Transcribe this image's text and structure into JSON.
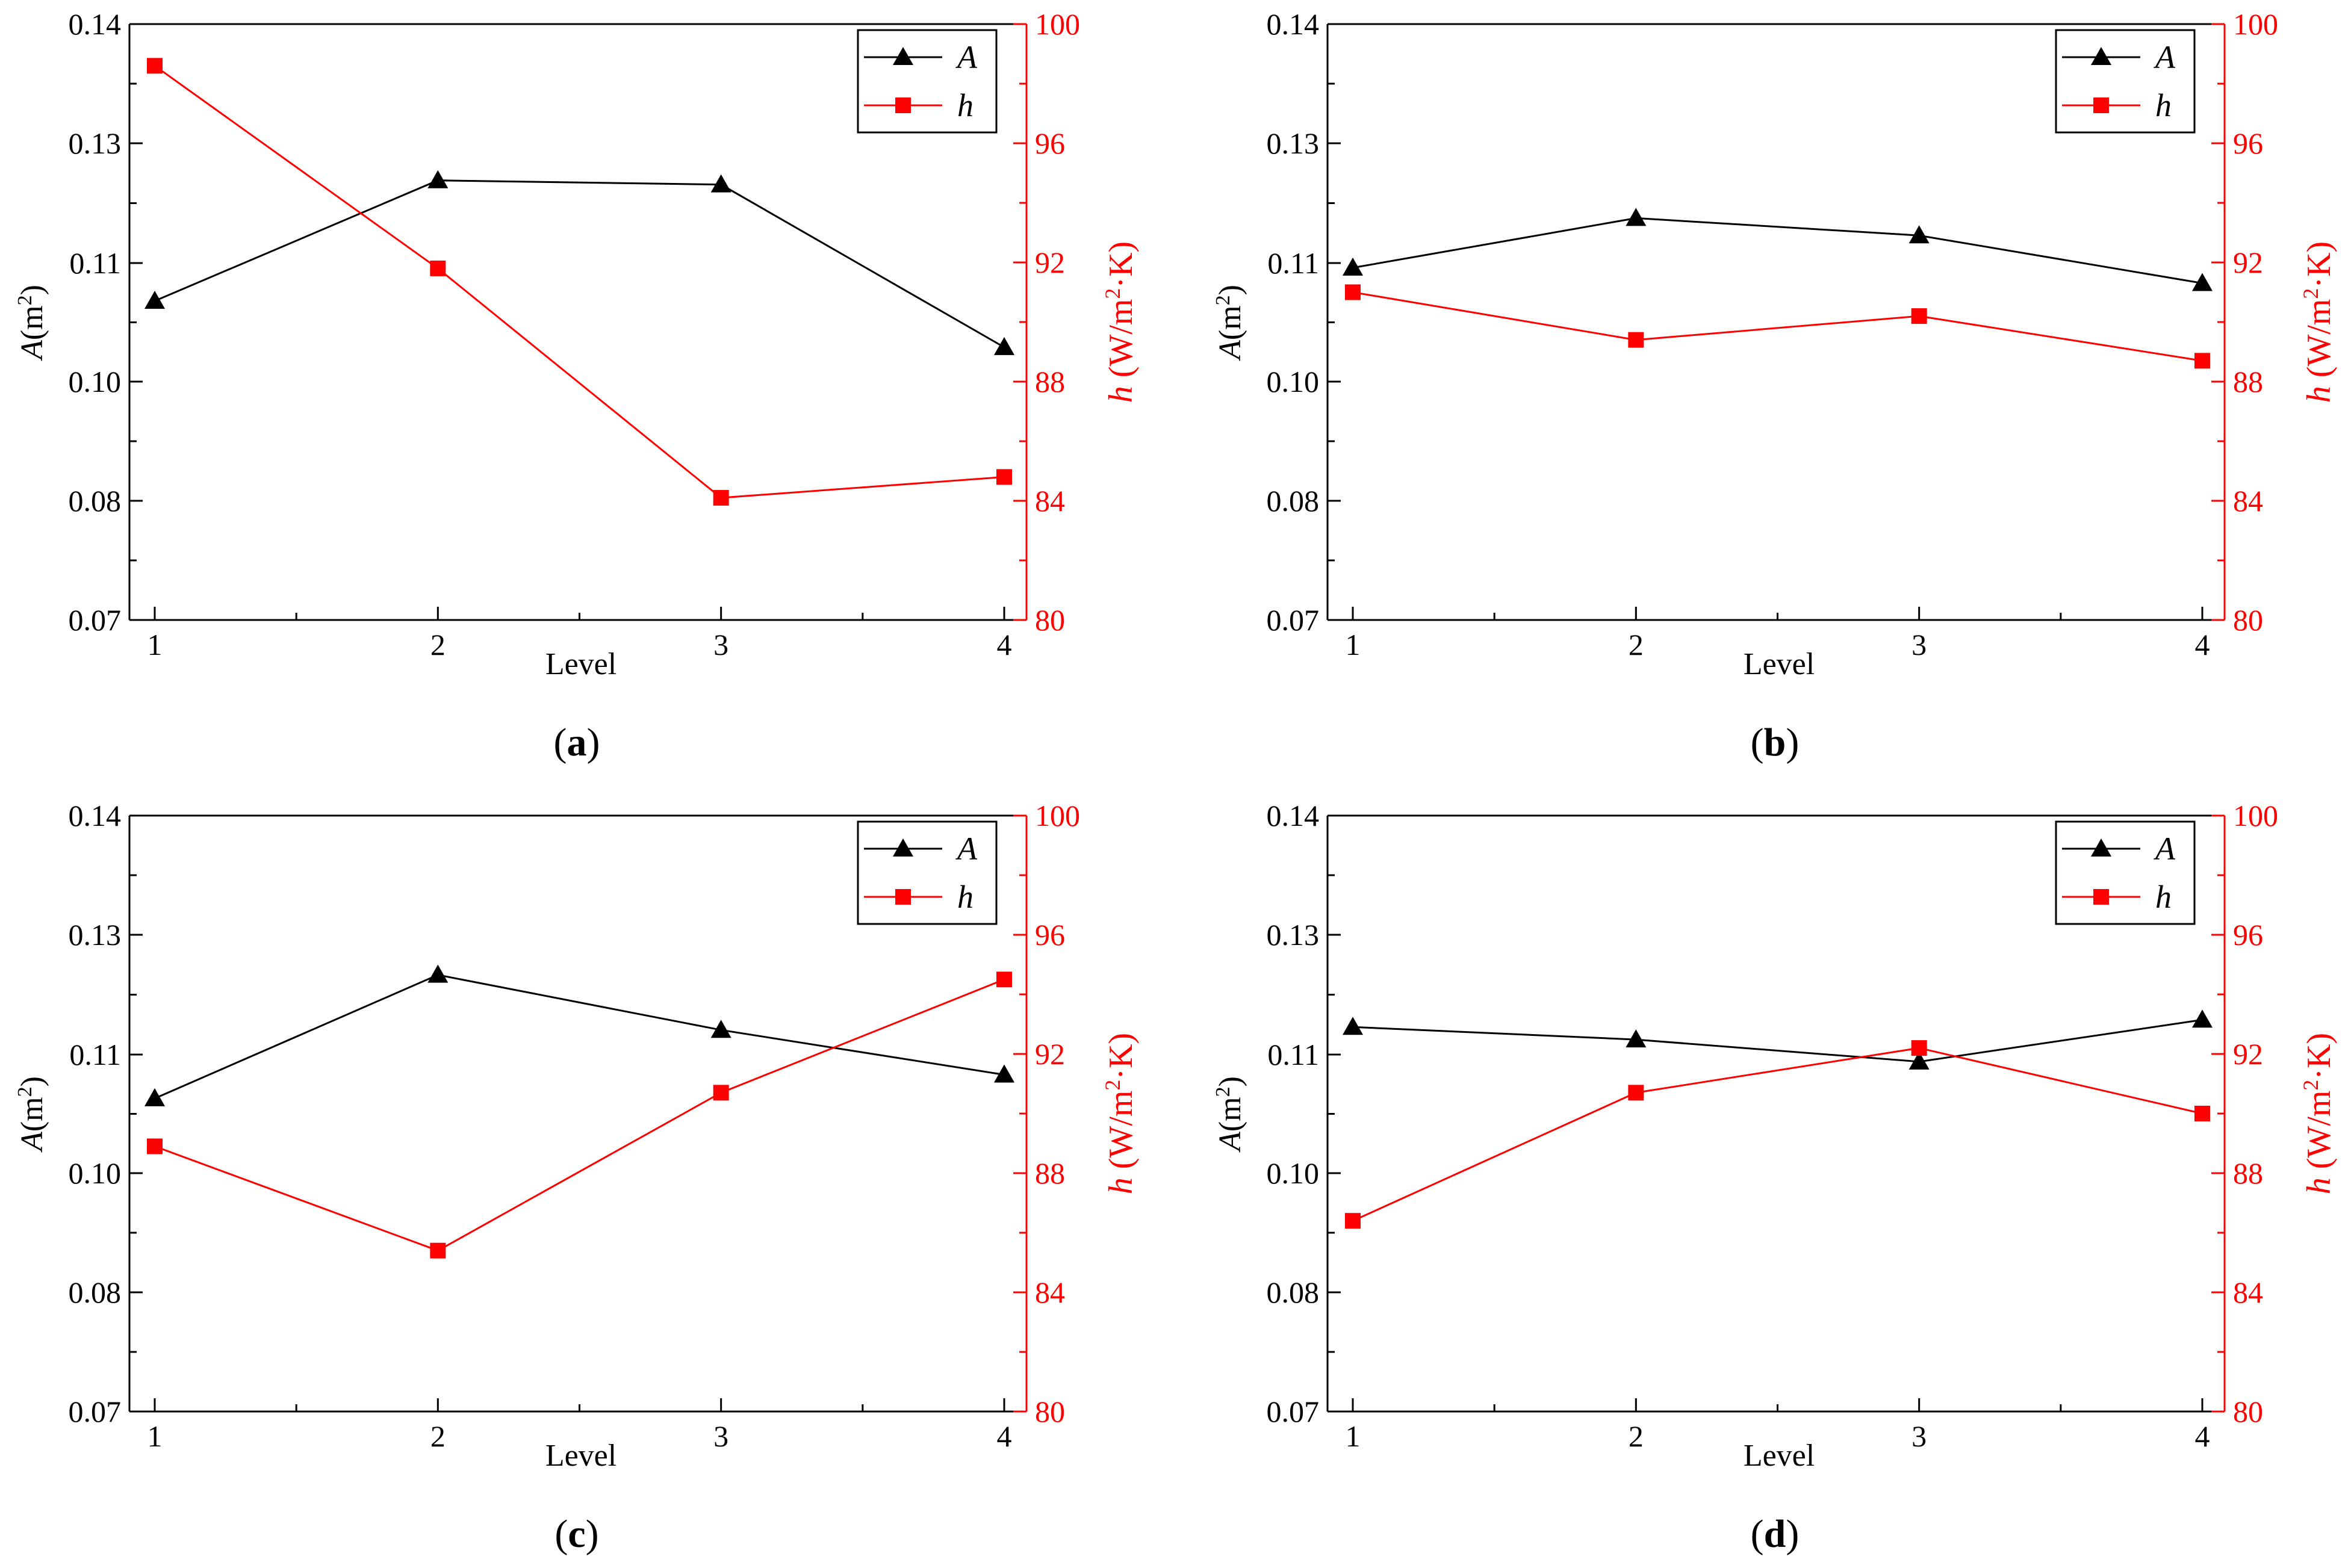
{
  "figure": {
    "panels": [
      "(a)",
      "(b)",
      "(c)",
      "(d)"
    ]
  },
  "colors": {
    "series_A": "#000000",
    "series_h": "#ff0000",
    "axis": "#000000"
  },
  "chart_data": [
    {
      "type": "line",
      "caption_letter": "a",
      "x": [
        1,
        2,
        3,
        4
      ],
      "x_ticks": [
        "1",
        "2",
        "3",
        "4"
      ],
      "xlabel": "Level",
      "ylabel_left": {
        "symbol": "A",
        "unit": "(m",
        "sup": "2",
        "close": ")"
      },
      "ylabel_right": {
        "symbol": "h",
        "unit": " (W/m",
        "sup": "2",
        "close": "·K)"
      },
      "y_left_ticks": [
        "0.07",
        "0.08",
        "0.10",
        "0.11",
        "0.13",
        "0.14"
      ],
      "y_right_ticks": [
        "80",
        "84",
        "88",
        "92",
        "96",
        "100"
      ],
      "ylim_right": [
        80,
        100
      ],
      "series": [
        {
          "name": "A",
          "axis": "left",
          "marker": "triangle",
          "values": [
            0.1068,
            0.1238,
            0.1231,
            0.1029
          ]
        },
        {
          "name": "h",
          "axis": "right",
          "marker": "square",
          "values": [
            98.6,
            91.8,
            84.1,
            84.8
          ]
        }
      ],
      "legend": [
        "A",
        "h"
      ],
      "legend_position": "top-right"
    },
    {
      "type": "line",
      "caption_letter": "b",
      "x": [
        1,
        2,
        3,
        4
      ],
      "x_ticks": [
        "1",
        "2",
        "3",
        "4"
      ],
      "xlabel": "Level",
      "ylabel_left": {
        "symbol": "A",
        "unit": "(m",
        "sup": "2",
        "close": ")"
      },
      "ylabel_right": {
        "symbol": "h",
        "unit": " (W/m",
        "sup": "2",
        "close": "·K)"
      },
      "y_left_ticks": [
        "0.07",
        "0.08",
        "0.10",
        "0.11",
        "0.13",
        "0.14"
      ],
      "y_right_ticks": [
        "80",
        "84",
        "88",
        "92",
        "96",
        "100"
      ],
      "ylim_right": [
        80,
        100
      ],
      "series": [
        {
          "name": "A",
          "axis": "left",
          "marker": "triangle",
          "values": [
            0.1096,
            0.1175,
            0.1146,
            0.1083
          ]
        },
        {
          "name": "h",
          "axis": "right",
          "marker": "square",
          "values": [
            91.0,
            89.4,
            90.2,
            88.7
          ]
        }
      ],
      "legend": [
        "A",
        "h"
      ],
      "legend_position": "top-right"
    },
    {
      "type": "line",
      "caption_letter": "c",
      "x": [
        1,
        2,
        3,
        4
      ],
      "x_ticks": [
        "1",
        "2",
        "3",
        "4"
      ],
      "xlabel": "Level",
      "ylabel_left": {
        "symbol": "A",
        "unit": "(m",
        "sup": "2",
        "close": ")"
      },
      "ylabel_right": {
        "symbol": "h",
        "unit": " (W/m",
        "sup": "2",
        "close": "·K)"
      },
      "y_left_ticks": [
        "0.07",
        "0.08",
        "0.10",
        "0.11",
        "0.13",
        "0.14"
      ],
      "y_right_ticks": [
        "80",
        "84",
        "88",
        "92",
        "96",
        "100"
      ],
      "ylim_right": [
        80,
        100
      ],
      "series": [
        {
          "name": "A",
          "axis": "left",
          "marker": "triangle",
          "values": [
            0.1063,
            0.1233,
            0.1141,
            0.1083
          ]
        },
        {
          "name": "h",
          "axis": "right",
          "marker": "square",
          "values": [
            88.9,
            85.4,
            90.7,
            94.5
          ]
        }
      ],
      "legend": [
        "A",
        "h"
      ],
      "legend_position": "top-right"
    },
    {
      "type": "line",
      "caption_letter": "d",
      "x": [
        1,
        2,
        3,
        4
      ],
      "x_ticks": [
        "1",
        "2",
        "3",
        "4"
      ],
      "xlabel": "Level",
      "ylabel_left": {
        "symbol": "A",
        "unit": "(m",
        "sup": "2",
        "close": ")"
      },
      "ylabel_right": {
        "symbol": "h",
        "unit": " (W/m",
        "sup": "2",
        "close": "·K)"
      },
      "y_left_ticks": [
        "0.07",
        "0.08",
        "0.10",
        "0.11",
        "0.13",
        "0.14"
      ],
      "y_right_ticks": [
        "80",
        "84",
        "88",
        "92",
        "96",
        "100"
      ],
      "ylim_right": [
        80,
        100
      ],
      "series": [
        {
          "name": "A",
          "axis": "left",
          "marker": "triangle",
          "values": [
            0.1146,
            0.1125,
            0.1094,
            0.1158
          ]
        },
        {
          "name": "h",
          "axis": "right",
          "marker": "square",
          "values": [
            86.4,
            90.7,
            92.2,
            90.0
          ]
        }
      ],
      "legend": [
        "A",
        "h"
      ],
      "legend_position": "top-right"
    }
  ]
}
